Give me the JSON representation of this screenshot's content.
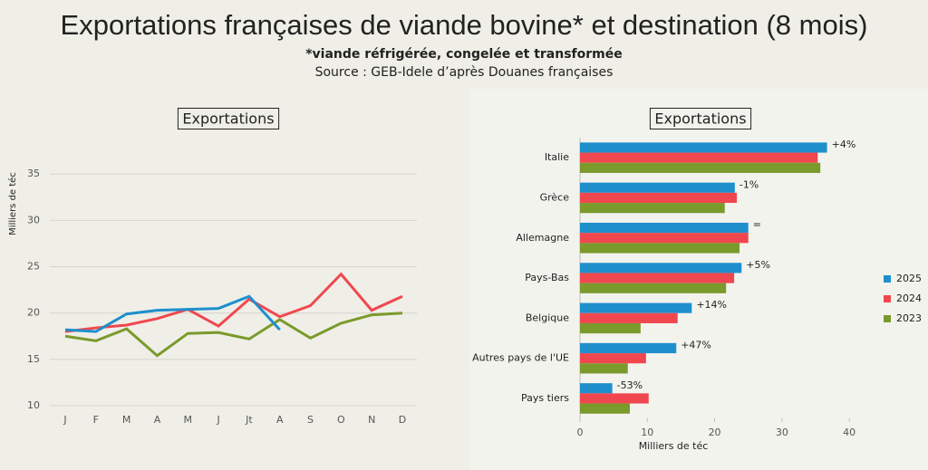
{
  "title": "Exportations françaises de viande bovine* et destination (8 mois)",
  "subtitle": "*viande réfrigérée, congelée et transformée",
  "source": "Source : GEB-Idele d’après Douanes françaises",
  "chart_data": [
    {
      "type": "line",
      "title": "Exportations",
      "y_label": "Milliers de téc",
      "categories": [
        "J",
        "F",
        "M",
        "A",
        "M",
        "J",
        "Jt",
        "A",
        "S",
        "O",
        "N",
        "D"
      ],
      "series": [
        {
          "name": "2025",
          "color": "#1f8fcc",
          "values": [
            18.2,
            18.0,
            19.9,
            20.3,
            20.4,
            20.5,
            21.8,
            18.2,
            null,
            null,
            null,
            null
          ]
        },
        {
          "name": "2024",
          "color": "#f0474f",
          "values": [
            18.0,
            18.4,
            18.7,
            19.4,
            20.4,
            18.6,
            21.5,
            19.6,
            20.8,
            24.2,
            20.3,
            21.8
          ]
        },
        {
          "name": "2023",
          "color": "#7a9a2c",
          "values": [
            17.5,
            17.0,
            18.3,
            15.4,
            17.8,
            17.9,
            17.2,
            19.3,
            17.3,
            18.9,
            19.8,
            20.0
          ]
        }
      ],
      "ylim": [
        10,
        36
      ],
      "yticks": [
        10,
        15,
        20,
        25,
        30,
        35
      ],
      "grid": true
    },
    {
      "type": "hbar",
      "title": "Exportations",
      "x_label": "Milliers de téc",
      "categories": [
        "Italie",
        "Grèce",
        "Allemagne",
        "Pays-Bas",
        "Belgique",
        "Autres pays de l'UE",
        "Pays tiers"
      ],
      "series": [
        {
          "name": "2025",
          "color": "#1f8fcc",
          "values": [
            36.7,
            23.0,
            25.0,
            24.0,
            16.6,
            14.3,
            4.8
          ]
        },
        {
          "name": "2024",
          "color": "#f0474f",
          "values": [
            35.3,
            23.3,
            25.0,
            22.9,
            14.5,
            9.8,
            10.2
          ]
        },
        {
          "name": "2023",
          "color": "#7a9a2c",
          "values": [
            35.7,
            21.5,
            23.7,
            21.7,
            9.0,
            7.1,
            7.4
          ]
        }
      ],
      "annotations": [
        "+4%",
        "-1%",
        "=",
        "+5%",
        "+14%",
        "+47%",
        "-53%"
      ],
      "xlim": [
        0,
        42
      ],
      "xticks": [
        0,
        10,
        20,
        30,
        40
      ],
      "legend": "right"
    }
  ]
}
